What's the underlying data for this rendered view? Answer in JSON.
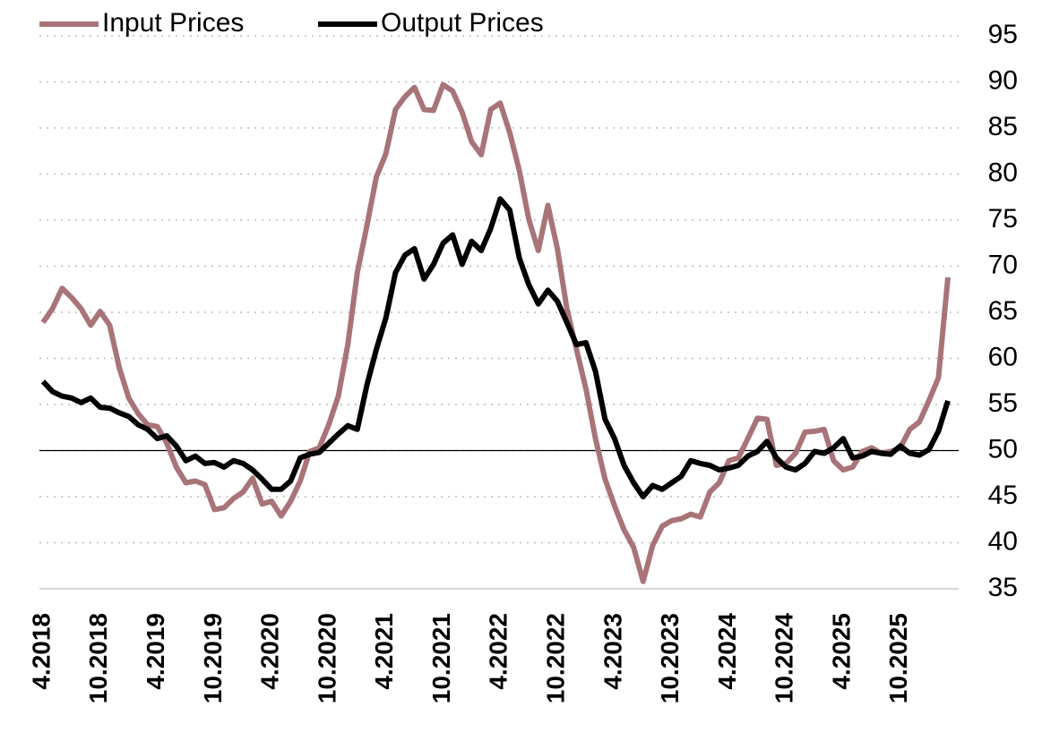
{
  "chart_data": {
    "type": "line",
    "categories": [
      "4.2018",
      null,
      null,
      null,
      null,
      null,
      "10.2018",
      null,
      null,
      null,
      null,
      null,
      "4.2019",
      null,
      null,
      null,
      null,
      null,
      "10.2019",
      null,
      null,
      null,
      null,
      null,
      "4.2020",
      null,
      null,
      null,
      null,
      null,
      "10.2020",
      null,
      null,
      null,
      null,
      null,
      "4.2021",
      null,
      null,
      null,
      null,
      null,
      "10.2021",
      null,
      null,
      null,
      null,
      null,
      "4.2022",
      null,
      null,
      null,
      null,
      null,
      "10.2022",
      null,
      null,
      null,
      null,
      null,
      "4.2023",
      null,
      null,
      null,
      null,
      null,
      "10.2023",
      null,
      null,
      null,
      null,
      null,
      "4.2024",
      null,
      null,
      null,
      null,
      null,
      "10.2024",
      null,
      null,
      null,
      null,
      null,
      "4.2025",
      null,
      null,
      null,
      null,
      null,
      "10.2025",
      null,
      null,
      null,
      null,
      null
    ],
    "series": [
      {
        "name": "Input Prices",
        "color": "#a87478",
        "values": [
          63.9,
          65.4,
          67.6,
          66.6,
          65.4,
          63.6,
          65.1,
          63.6,
          59,
          55.7,
          54,
          52.8,
          52.6,
          50.8,
          48.2,
          46.5,
          46.7,
          46.3,
          43.6,
          43.8,
          44.8,
          45.5,
          47,
          44.2,
          44.5,
          42.9,
          44.5,
          46.7,
          49.9,
          50.3,
          52.8,
          55.9,
          61.5,
          69.3,
          74.4,
          79.7,
          82.2,
          87,
          88.4,
          89.4,
          87,
          86.9,
          89.7,
          89,
          86.7,
          83.5,
          82.1,
          87,
          87.7,
          84.5,
          80.4,
          75.1,
          71.7,
          76.6,
          71.9,
          65.4,
          61,
          56.7,
          51.3,
          46.9,
          44,
          41.4,
          39.5,
          35.8,
          39.7,
          41.8,
          42.4,
          42.6,
          43.1,
          42.8,
          45.5,
          46.5,
          48.9,
          49.2,
          51.3,
          53.5,
          53.4,
          48.4,
          48.6,
          49.7,
          52,
          52.1,
          52.3,
          48.9,
          47.9,
          48.2,
          49.9,
          50.3,
          49.7,
          49.9,
          50.3,
          52.3,
          53.1,
          55.4,
          57.9,
          68.8
        ]
      },
      {
        "name": "Output Prices",
        "color": "#000000",
        "values": [
          57.5,
          56.4,
          55.9,
          55.7,
          55.2,
          55.7,
          54.7,
          54.6,
          54.1,
          53.7,
          52.8,
          52.3,
          51.3,
          51.6,
          50.5,
          48.9,
          49.4,
          48.6,
          48.7,
          48.2,
          48.9,
          48.6,
          47.9,
          46.9,
          45.8,
          45.8,
          46.7,
          49.2,
          49.6,
          49.8,
          50.8,
          51.8,
          52.7,
          52.3,
          57.1,
          61,
          64.4,
          69.3,
          71.2,
          71.9,
          68.6,
          70.2,
          72.5,
          73.4,
          70.2,
          72.7,
          71.7,
          74.1,
          77.3,
          76.1,
          70.9,
          68,
          65.9,
          67.4,
          66.2,
          63.9,
          61.5,
          61.7,
          58.6,
          53.4,
          51.3,
          48.4,
          46.5,
          45,
          46.2,
          45.8,
          46.5,
          47.2,
          48.9,
          48.6,
          48.4,
          47.9,
          48.1,
          48.4,
          49.4,
          49.9,
          51,
          49.2,
          48.2,
          47.9,
          48.6,
          49.9,
          49.7,
          50.3,
          51.3,
          49.2,
          49.4,
          49.9,
          49.7,
          49.6,
          50.5,
          49.7,
          49.5,
          50.1,
          52.1,
          55.4
        ]
      }
    ],
    "ylim": [
      35,
      95
    ],
    "yticks": [
      35,
      40,
      45,
      50,
      55,
      60,
      65,
      70,
      75,
      80,
      85,
      90,
      95
    ],
    "grid": true,
    "hline": 50,
    "legend": "top-left"
  }
}
